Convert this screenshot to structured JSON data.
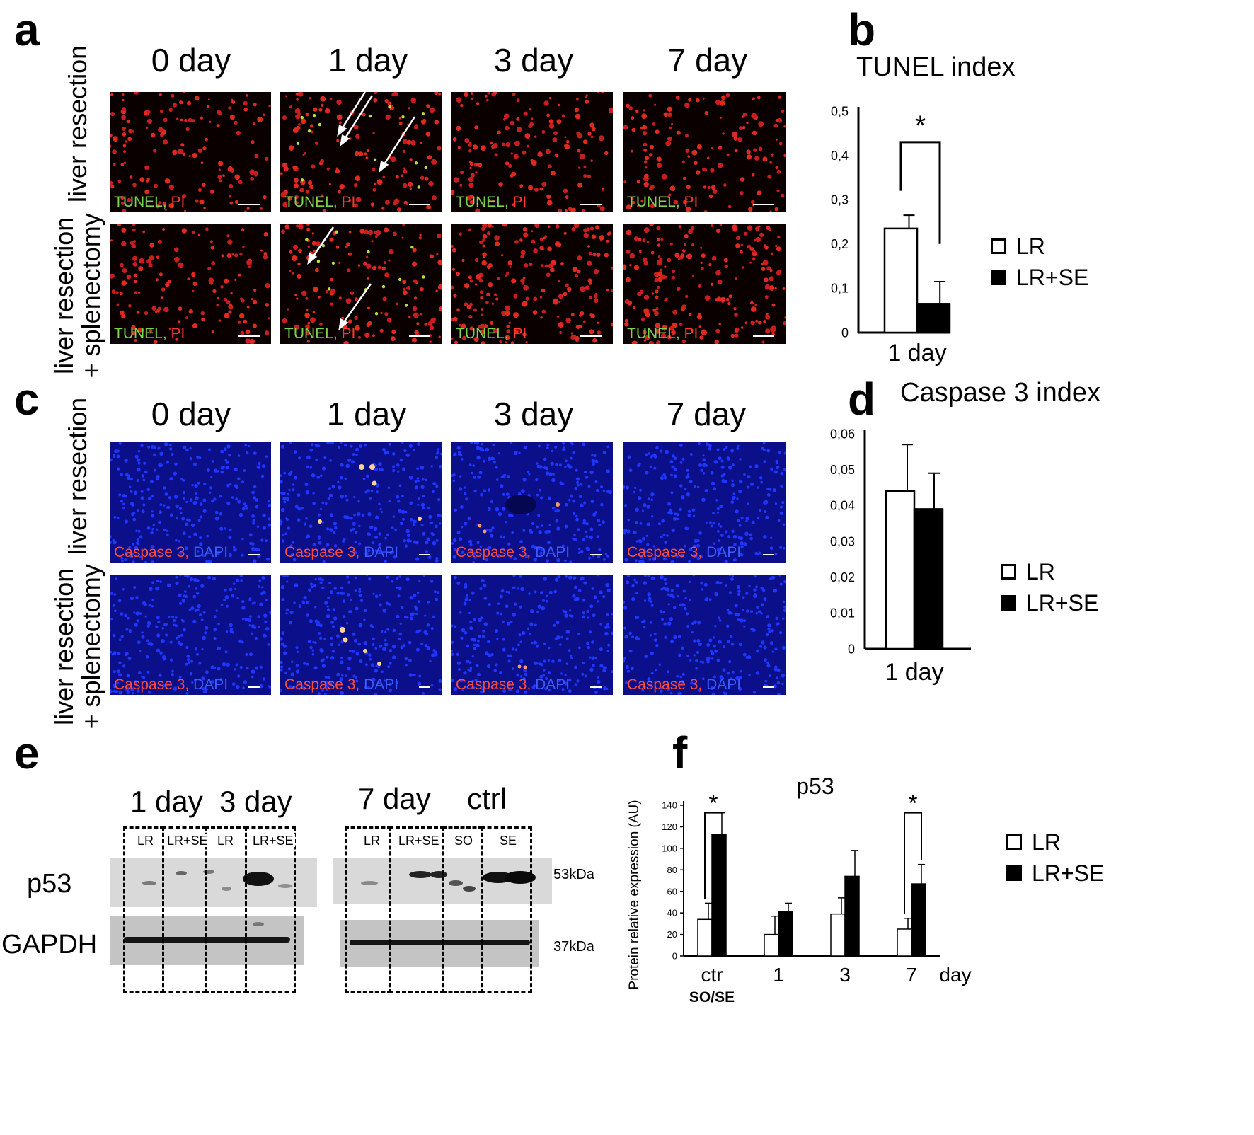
{
  "panels": {
    "a": "a",
    "b": "b",
    "c": "c",
    "d": "d",
    "e": "e",
    "f": "f"
  },
  "panel_a": {
    "columns": [
      "0 day",
      "1 day",
      "3 day",
      "7 day"
    ],
    "rows": [
      "liver resection",
      "liver resection\n+ splenectomy"
    ],
    "stain": {
      "green": "TUNEL,",
      "red": " PI"
    }
  },
  "panel_c": {
    "columns": [
      "0 day",
      "1 day",
      "3 day",
      "7 day"
    ],
    "rows": [
      "liver resection",
      "liver resection\n+ splenectomy"
    ],
    "stain": {
      "red": "Caspase 3,",
      "blue": " DAPI"
    }
  },
  "panel_e": {
    "left_heads": [
      "1 day",
      "3 day"
    ],
    "right_heads": [
      "7 day",
      "ctrl"
    ],
    "left_lanes": [
      "LR",
      "LR+SE",
      "LR",
      "LR+SE"
    ],
    "right_lanes": [
      "LR",
      "LR+SE",
      "SO",
      "SE"
    ],
    "blots": [
      "p53",
      "GAPDH"
    ],
    "kda": [
      "53kDa",
      "37kDa"
    ]
  },
  "legend": {
    "open": "LR",
    "filled": "LR+SE"
  },
  "chart_data": [
    {
      "type": "bar",
      "title": "TUNEL index",
      "categories": [
        "1 day"
      ],
      "series": [
        {
          "name": "LR",
          "values": [
            0.235
          ],
          "error": [
            0.03
          ]
        },
        {
          "name": "LR+SE",
          "values": [
            0.065
          ],
          "error": [
            0.05
          ]
        }
      ],
      "ylim": [
        0,
        0.5
      ],
      "yticks": [
        "0",
        "0,1",
        "0,2",
        "0,3",
        "0,4",
        "0,5"
      ],
      "significance": [
        "*"
      ]
    },
    {
      "type": "bar",
      "title": "Caspase 3 index",
      "categories": [
        "1 day"
      ],
      "series": [
        {
          "name": "LR",
          "values": [
            0.044
          ],
          "error": [
            0.013
          ]
        },
        {
          "name": "LR+SE",
          "values": [
            0.039
          ],
          "error": [
            0.01
          ]
        }
      ],
      "ylim": [
        0,
        0.06
      ],
      "yticks": [
        "0",
        "0,01",
        "0,02",
        "0,03",
        "0,04",
        "0,05",
        "0,06"
      ]
    },
    {
      "type": "bar",
      "title": "p53",
      "ylabel": "Protein relative expression (AU)",
      "xlabel": "day",
      "categories": [
        "ctr",
        "1",
        "3",
        "7"
      ],
      "category_sublabel": "SO/SE",
      "series": [
        {
          "name": "LR",
          "values": [
            34,
            20,
            39,
            25
          ],
          "error": [
            15,
            17,
            15,
            10
          ]
        },
        {
          "name": "LR+SE",
          "values": [
            113,
            41,
            74,
            67
          ],
          "error": [
            20,
            8,
            24,
            18
          ]
        }
      ],
      "ylim": [
        0,
        140
      ],
      "yticks": [
        "0",
        "20",
        "40",
        "60",
        "80",
        "100",
        "120",
        "140"
      ],
      "significance": [
        "*",
        "*"
      ]
    }
  ]
}
